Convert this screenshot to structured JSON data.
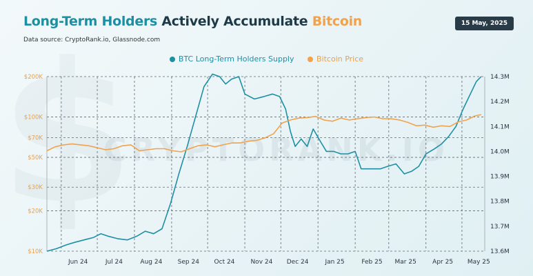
{
  "title": {
    "part1": "Long-Term Holders",
    "part2": " Actively Accumulate ",
    "part3": "Bitcoin"
  },
  "source": "Data source: CryptoRank.io, Glassnode.com",
  "date": "15 May, 2025",
  "watermark": "CRYPTORANK.IO",
  "watermark_symbol": "$",
  "colors": {
    "ltb": "#1d8fa3",
    "btc": "#f1a24b",
    "grid": "#5c6770"
  },
  "chart_data": {
    "type": "line",
    "legend": [
      "BTC Long-Term Holders Supply",
      "Bitcoin Price"
    ],
    "legend_position": "top-center",
    "x_labels": [
      "Jun 24",
      "Jul 24",
      "Aug 24",
      "Sep 24",
      "Oct 24",
      "Nov 24",
      "Dec 24",
      "Jan 25",
      "Feb 25",
      "Mar 25",
      "Apr 25",
      "May 25"
    ],
    "x_range": [
      "2024-05-20",
      "2025-05-20"
    ],
    "left_axis": {
      "name": "",
      "scale": "log",
      "ticks": [
        "$10K",
        "$20K",
        "$30K",
        "$50K",
        "$70K",
        "$100K",
        "$200K"
      ],
      "tick_values": [
        10000,
        20000,
        30000,
        50000,
        70000,
        100000,
        200000
      ],
      "range": [
        10000,
        200000
      ]
    },
    "right_axis": {
      "name": "",
      "scale": "linear",
      "ticks": [
        "13.6M",
        "13.7M",
        "13.8M",
        "13.9M",
        "14.0M",
        "14.1M",
        "14.2M",
        "14.3M"
      ],
      "tick_values": [
        13.6,
        13.7,
        13.8,
        13.9,
        14.0,
        14.1,
        14.2,
        14.3
      ],
      "range": [
        13.6,
        14.3
      ]
    },
    "grid": "dashed",
    "series": [
      {
        "name": "BTC Long-Term Holders Supply",
        "axis": "right",
        "unit": "millions BTC",
        "points": [
          [
            "2024-05-20",
            13.6
          ],
          [
            "2024-05-28",
            13.61
          ],
          [
            "2024-06-05",
            13.625
          ],
          [
            "2024-06-12",
            13.635
          ],
          [
            "2024-06-20",
            13.645
          ],
          [
            "2024-06-28",
            13.655
          ],
          [
            "2024-07-04",
            13.67
          ],
          [
            "2024-07-10",
            13.66
          ],
          [
            "2024-07-18",
            13.65
          ],
          [
            "2024-07-26",
            13.645
          ],
          [
            "2024-08-03",
            13.66
          ],
          [
            "2024-08-10",
            13.68
          ],
          [
            "2024-08-17",
            13.67
          ],
          [
            "2024-08-24",
            13.69
          ],
          [
            "2024-08-31",
            13.79
          ],
          [
            "2024-09-07",
            13.91
          ],
          [
            "2024-09-14",
            14.02
          ],
          [
            "2024-09-21",
            14.14
          ],
          [
            "2024-09-28",
            14.26
          ],
          [
            "2024-10-05",
            14.31
          ],
          [
            "2024-10-11",
            14.3
          ],
          [
            "2024-10-16",
            14.27
          ],
          [
            "2024-10-21",
            14.29
          ],
          [
            "2024-10-27",
            14.3
          ],
          [
            "2024-11-01",
            14.23
          ],
          [
            "2024-11-09",
            14.21
          ],
          [
            "2024-11-17",
            14.22
          ],
          [
            "2024-11-24",
            14.23
          ],
          [
            "2024-11-30",
            14.22
          ],
          [
            "2024-12-05",
            14.17
          ],
          [
            "2024-12-09",
            14.08
          ],
          [
            "2024-12-13",
            14.02
          ],
          [
            "2024-12-18",
            14.05
          ],
          [
            "2024-12-23",
            14.02
          ],
          [
            "2024-12-28",
            14.09
          ],
          [
            "2025-01-03",
            14.04
          ],
          [
            "2025-01-08",
            14.0
          ],
          [
            "2025-01-14",
            14.0
          ],
          [
            "2025-01-20",
            13.99
          ],
          [
            "2025-01-26",
            13.99
          ],
          [
            "2025-02-01",
            14.0
          ],
          [
            "2025-02-06",
            13.93
          ],
          [
            "2025-02-14",
            13.93
          ],
          [
            "2025-02-22",
            13.93
          ],
          [
            "2025-02-28",
            13.94
          ],
          [
            "2025-03-07",
            13.95
          ],
          [
            "2025-03-14",
            13.91
          ],
          [
            "2025-03-20",
            13.92
          ],
          [
            "2025-03-26",
            13.94
          ],
          [
            "2025-04-01",
            13.99
          ],
          [
            "2025-04-08",
            14.01
          ],
          [
            "2025-04-14",
            14.03
          ],
          [
            "2025-04-20",
            14.06
          ],
          [
            "2025-04-26",
            14.1
          ],
          [
            "2025-05-02",
            14.17
          ],
          [
            "2025-05-08",
            14.23
          ],
          [
            "2025-05-13",
            14.28
          ],
          [
            "2025-05-17",
            14.3
          ]
        ]
      },
      {
        "name": "Bitcoin Price",
        "axis": "left",
        "unit": "USD",
        "points": [
          [
            "2024-05-20",
            56000
          ],
          [
            "2024-05-27",
            60000
          ],
          [
            "2024-06-03",
            62000
          ],
          [
            "2024-06-10",
            63000
          ],
          [
            "2024-06-17",
            62000
          ],
          [
            "2024-06-24",
            61000
          ],
          [
            "2024-07-01",
            59000
          ],
          [
            "2024-07-08",
            57000
          ],
          [
            "2024-07-15",
            58000
          ],
          [
            "2024-07-22",
            61000
          ],
          [
            "2024-07-29",
            62000
          ],
          [
            "2024-08-05",
            56000
          ],
          [
            "2024-08-12",
            57000
          ],
          [
            "2024-08-19",
            58000
          ],
          [
            "2024-08-26",
            58000
          ],
          [
            "2024-09-02",
            56000
          ],
          [
            "2024-09-09",
            55000
          ],
          [
            "2024-09-16",
            58000
          ],
          [
            "2024-09-23",
            61000
          ],
          [
            "2024-09-30",
            62000
          ],
          [
            "2024-10-07",
            60000
          ],
          [
            "2024-10-14",
            62000
          ],
          [
            "2024-10-21",
            64000
          ],
          [
            "2024-10-28",
            64000
          ],
          [
            "2024-11-04",
            66000
          ],
          [
            "2024-11-11",
            67000
          ],
          [
            "2024-11-18",
            70000
          ],
          [
            "2024-11-25",
            75000
          ],
          [
            "2024-12-02",
            90000
          ],
          [
            "2024-12-09",
            95000
          ],
          [
            "2024-12-16",
            98000
          ],
          [
            "2024-12-23",
            99000
          ],
          [
            "2024-12-30",
            101000
          ],
          [
            "2025-01-06",
            95000
          ],
          [
            "2025-01-13",
            93000
          ],
          [
            "2025-01-20",
            98000
          ],
          [
            "2025-01-27",
            95000
          ],
          [
            "2025-02-03",
            97000
          ],
          [
            "2025-02-10",
            99000
          ],
          [
            "2025-02-17",
            100000
          ],
          [
            "2025-02-24",
            97000
          ],
          [
            "2025-03-03",
            97000
          ],
          [
            "2025-03-10",
            95000
          ],
          [
            "2025-03-17",
            91000
          ],
          [
            "2025-03-24",
            86000
          ],
          [
            "2025-03-31",
            87000
          ],
          [
            "2025-04-07",
            84000
          ],
          [
            "2025-04-14",
            86000
          ],
          [
            "2025-04-21",
            85000
          ],
          [
            "2025-04-28",
            92000
          ],
          [
            "2025-05-05",
            95000
          ],
          [
            "2025-05-12",
            102000
          ],
          [
            "2025-05-17",
            104000
          ]
        ]
      }
    ]
  }
}
